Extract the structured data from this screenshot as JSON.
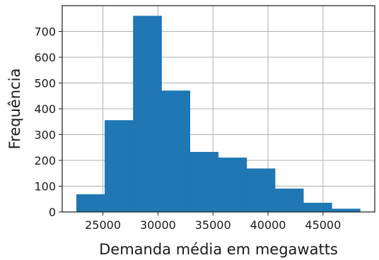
{
  "chart_data": {
    "type": "bar",
    "title": "",
    "xlabel": "Demanda média em megawatts",
    "ylabel": "Frequência",
    "bins": [
      {
        "x0": 22600,
        "x1": 25178,
        "count": 68
      },
      {
        "x0": 25178,
        "x1": 27756,
        "count": 355
      },
      {
        "x0": 27756,
        "x1": 30334,
        "count": 760
      },
      {
        "x0": 30334,
        "x1": 32912,
        "count": 470
      },
      {
        "x0": 32912,
        "x1": 35490,
        "count": 232
      },
      {
        "x0": 35490,
        "x1": 38068,
        "count": 210
      },
      {
        "x0": 38068,
        "x1": 40646,
        "count": 168
      },
      {
        "x0": 40646,
        "x1": 43224,
        "count": 90
      },
      {
        "x0": 43224,
        "x1": 45802,
        "count": 35
      },
      {
        "x0": 45802,
        "x1": 48380,
        "count": 12
      }
    ],
    "xticks": [
      25000,
      30000,
      35000,
      40000,
      45000
    ],
    "yticks": [
      0,
      100,
      200,
      300,
      400,
      500,
      600,
      700
    ],
    "xlim": [
      21300,
      49700
    ],
    "ylim": [
      0,
      800
    ],
    "grid": true,
    "colors": {
      "bar": "#1f77b4",
      "bar_edge": "#1f77b4",
      "grid": "#b0b0b0",
      "axis": "#1a1a1a"
    }
  }
}
